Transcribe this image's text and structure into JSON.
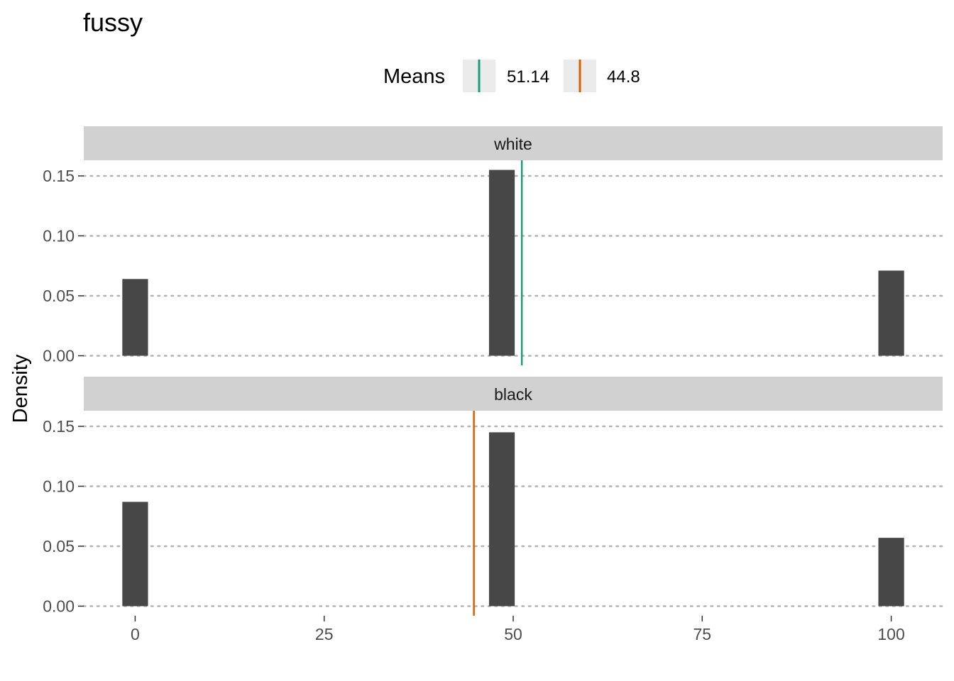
{
  "chart_data": {
    "type": "bar",
    "title": "fussy",
    "xlabel": "",
    "ylabel": "Density",
    "xlim": [
      -6.8,
      106.8
    ],
    "ylim": [
      -0.008,
      0.163
    ],
    "x_ticks": [
      0,
      25,
      50,
      75,
      100
    ],
    "x_tick_labels": [
      "0",
      "25",
      "50",
      "75",
      "100"
    ],
    "y_ticks": [
      0.0,
      0.05,
      0.1,
      0.15
    ],
    "y_tick_labels": [
      "0.00",
      "0.05",
      "0.10",
      "0.15"
    ],
    "grid": "horizontal dotted",
    "bar_color": "#474747",
    "bar_width": 3.4,
    "legend": {
      "title": "Means",
      "position": "top",
      "entries": [
        {
          "label": "51.14",
          "color": "#1b9e77"
        },
        {
          "label": "44.8",
          "color": "#d95f02"
        }
      ]
    },
    "panels": [
      {
        "strip": "white",
        "bars": [
          {
            "x": 0,
            "density": 0.064
          },
          {
            "x": 48.5,
            "density": 0.155
          },
          {
            "x": 100,
            "density": 0.071
          }
        ],
        "mean": 51.14,
        "mean_color": "#1b9e77"
      },
      {
        "strip": "black",
        "bars": [
          {
            "x": 0,
            "density": 0.087
          },
          {
            "x": 48.5,
            "density": 0.145
          },
          {
            "x": 100,
            "density": 0.057
          }
        ],
        "mean": 44.8,
        "mean_color": "#d95f02"
      }
    ]
  }
}
